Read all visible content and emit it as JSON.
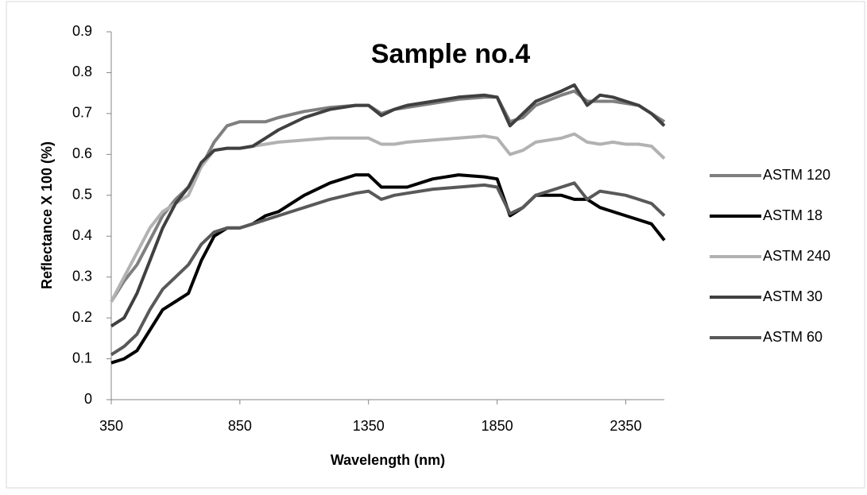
{
  "chart_data": {
    "type": "line",
    "title": "Sample no.4",
    "x_label": "Wavelength (nm)",
    "y_label": "Reflectance X 100  (%)",
    "x": [
      350,
      400,
      450,
      500,
      550,
      600,
      650,
      700,
      750,
      800,
      850,
      900,
      950,
      1000,
      1100,
      1200,
      1300,
      1350,
      1400,
      1450,
      1500,
      1600,
      1700,
      1800,
      1850,
      1900,
      1950,
      2000,
      2100,
      2150,
      2200,
      2250,
      2300,
      2350,
      2400,
      2450,
      2500
    ],
    "series": [
      {
        "name": "ASTM 120",
        "color": "#7f7f7f",
        "values": [
          0.24,
          0.29,
          0.33,
          0.39,
          0.45,
          0.49,
          0.52,
          0.57,
          0.63,
          0.67,
          0.68,
          0.68,
          0.68,
          0.69,
          0.705,
          0.715,
          0.72,
          0.72,
          0.7,
          0.71,
          0.715,
          0.725,
          0.735,
          0.74,
          0.74,
          0.68,
          0.69,
          0.72,
          0.745,
          0.755,
          0.73,
          0.73,
          0.73,
          0.725,
          0.72,
          0.7,
          0.68
        ]
      },
      {
        "name": "ASTM 18",
        "color": "#000000",
        "values": [
          0.09,
          0.1,
          0.12,
          0.17,
          0.22,
          0.24,
          0.26,
          0.34,
          0.4,
          0.42,
          0.42,
          0.43,
          0.45,
          0.46,
          0.5,
          0.53,
          0.55,
          0.55,
          0.52,
          0.52,
          0.52,
          0.54,
          0.55,
          0.545,
          0.54,
          0.45,
          0.47,
          0.5,
          0.5,
          0.49,
          0.49,
          0.47,
          0.46,
          0.45,
          0.44,
          0.43,
          0.39
        ]
      },
      {
        "name": "ASTM 240",
        "color": "#b2b2b2",
        "values": [
          0.24,
          0.3,
          0.36,
          0.42,
          0.46,
          0.48,
          0.5,
          0.57,
          0.61,
          0.615,
          0.615,
          0.62,
          0.625,
          0.63,
          0.635,
          0.64,
          0.64,
          0.64,
          0.625,
          0.625,
          0.63,
          0.635,
          0.64,
          0.645,
          0.64,
          0.6,
          0.61,
          0.63,
          0.64,
          0.65,
          0.63,
          0.625,
          0.63,
          0.625,
          0.625,
          0.62,
          0.59
        ]
      },
      {
        "name": "ASTM 30",
        "color": "#404040",
        "values": [
          0.18,
          0.2,
          0.26,
          0.34,
          0.42,
          0.48,
          0.52,
          0.58,
          0.61,
          0.615,
          0.615,
          0.62,
          0.64,
          0.66,
          0.69,
          0.71,
          0.72,
          0.72,
          0.695,
          0.71,
          0.72,
          0.73,
          0.74,
          0.745,
          0.74,
          0.67,
          0.7,
          0.73,
          0.755,
          0.77,
          0.72,
          0.745,
          0.74,
          0.73,
          0.72,
          0.7,
          0.67
        ]
      },
      {
        "name": "ASTM 60",
        "color": "#595959",
        "values": [
          0.11,
          0.13,
          0.16,
          0.22,
          0.27,
          0.3,
          0.33,
          0.38,
          0.41,
          0.42,
          0.42,
          0.43,
          0.44,
          0.45,
          0.47,
          0.49,
          0.505,
          0.51,
          0.49,
          0.5,
          0.505,
          0.515,
          0.52,
          0.525,
          0.52,
          0.455,
          0.47,
          0.5,
          0.52,
          0.53,
          0.49,
          0.51,
          0.505,
          0.5,
          0.49,
          0.48,
          0.45
        ]
      }
    ],
    "xlim": [
      350,
      2500
    ],
    "xticks": [
      350,
      850,
      1350,
      1850,
      2350
    ],
    "ylim": [
      0,
      0.9
    ],
    "yticks": [
      0,
      0.1,
      0.2,
      0.3,
      0.4,
      0.5,
      0.6,
      0.7,
      0.8,
      0.9
    ],
    "grid": false,
    "legend": "right"
  }
}
